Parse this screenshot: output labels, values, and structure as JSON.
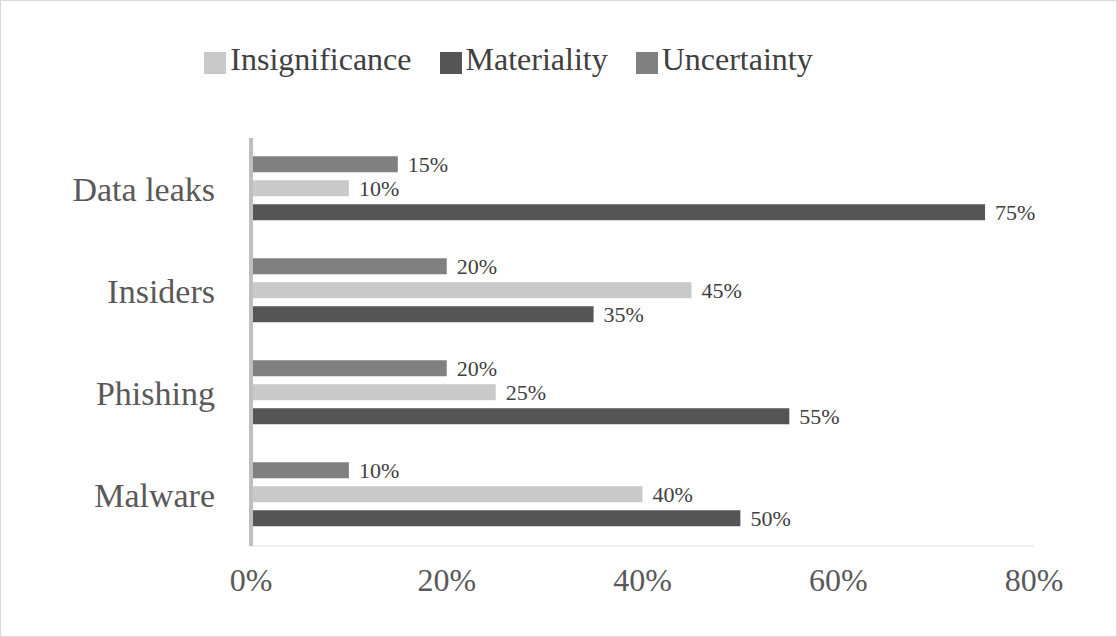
{
  "chart_data": {
    "type": "bar",
    "orientation": "horizontal",
    "categories": [
      "Data leaks",
      "Insiders",
      "Phishing",
      "Malware"
    ],
    "series": [
      {
        "name": "Uncertainty",
        "color": "#808080",
        "values": [
          15,
          20,
          20,
          10
        ],
        "value_labels": [
          "15%",
          "20%",
          "20%",
          "10%"
        ]
      },
      {
        "name": "Insignificance",
        "color": "#c9c9c9",
        "values": [
          10,
          45,
          25,
          40
        ],
        "value_labels": [
          "10%",
          "45%",
          "25%",
          "40%"
        ]
      },
      {
        "name": "Materiality",
        "color": "#555555",
        "values": [
          75,
          35,
          55,
          50
        ],
        "value_labels": [
          "75%",
          "35%",
          "55%",
          "50%"
        ]
      }
    ],
    "xlim": [
      0,
      80
    ],
    "xticks": [
      {
        "value": 0,
        "label": "0%"
      },
      {
        "value": 20,
        "label": "20%"
      },
      {
        "value": 40,
        "label": "40%"
      },
      {
        "value": 60,
        "label": "60%"
      },
      {
        "value": 80,
        "label": "80%"
      }
    ],
    "grid": false,
    "legend": "top",
    "data_labels": true
  }
}
